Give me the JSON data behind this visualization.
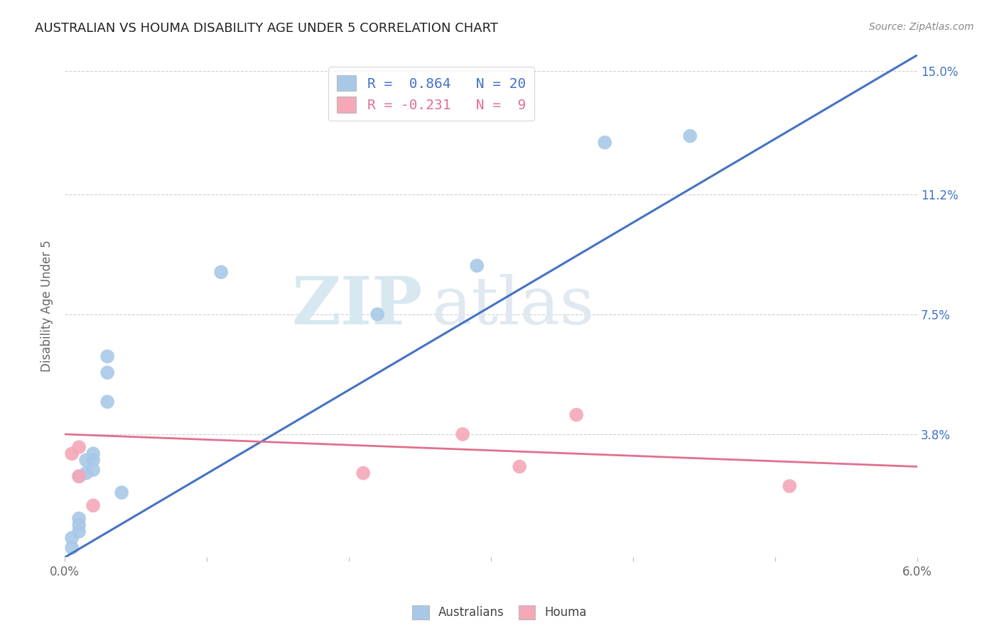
{
  "title": "AUSTRALIAN VS HOUMA DISABILITY AGE UNDER 5 CORRELATION CHART",
  "source": "Source: ZipAtlas.com",
  "ylabel": "Disability Age Under 5",
  "xlim": [
    0.0,
    0.06
  ],
  "ylim": [
    0.0,
    0.155
  ],
  "xticks": [
    0.0,
    0.01,
    0.02,
    0.03,
    0.04,
    0.05,
    0.06
  ],
  "xticklabels": [
    "0.0%",
    "",
    "",
    "",
    "",
    "",
    "6.0%"
  ],
  "ytick_positions": [
    0.0,
    0.038,
    0.075,
    0.112,
    0.15
  ],
  "yticklabels_right": [
    "",
    "3.8%",
    "7.5%",
    "11.2%",
    "15.0%"
  ],
  "grid_color": "#d0d0d0",
  "background_color": "#ffffff",
  "watermark_zip": "ZIP",
  "watermark_atlas": "atlas",
  "aus_color": "#a8c8e8",
  "aus_line_color": "#4472c4",
  "houma_color": "#f4a8b8",
  "houma_line_color": "#e07090",
  "aus_points_x": [
    0.0005,
    0.0005,
    0.001,
    0.001,
    0.001,
    0.001,
    0.0015,
    0.0015,
    0.002,
    0.002,
    0.002,
    0.003,
    0.003,
    0.003,
    0.004,
    0.011,
    0.022,
    0.029,
    0.038,
    0.044
  ],
  "aus_points_y": [
    0.003,
    0.006,
    0.008,
    0.01,
    0.012,
    0.025,
    0.026,
    0.03,
    0.027,
    0.03,
    0.032,
    0.048,
    0.057,
    0.062,
    0.02,
    0.088,
    0.075,
    0.09,
    0.128,
    0.13
  ],
  "houma_points_x": [
    0.0005,
    0.001,
    0.001,
    0.002,
    0.021,
    0.028,
    0.032,
    0.036,
    0.051
  ],
  "houma_points_y": [
    0.032,
    0.025,
    0.034,
    0.016,
    0.026,
    0.038,
    0.028,
    0.044,
    0.022
  ],
  "aus_line_x": [
    0.0,
    0.06
  ],
  "aus_line_y": [
    0.0,
    0.155
  ],
  "houma_line_x": [
    0.0,
    0.06
  ],
  "houma_line_y": [
    0.038,
    0.028
  ],
  "legend_text_aus": "R =  0.864   N = 20",
  "legend_text_houma": "R = -0.231   N =  9",
  "legend_labels": [
    "Australians",
    "Houma"
  ],
  "title_fontsize": 13,
  "source_fontsize": 10,
  "tick_fontsize": 12,
  "ylabel_fontsize": 12
}
